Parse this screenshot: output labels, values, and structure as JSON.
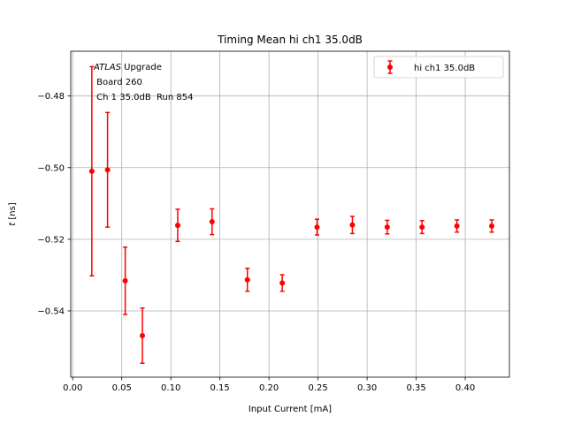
{
  "chart_data": {
    "type": "scatter",
    "title": "Timing Mean hi ch1 35.0dB",
    "xlabel": "Input Current [mA]",
    "ylabel_symbol": "t",
    "ylabel_unit": " [ns]",
    "xlim": [
      -0.002,
      0.445
    ],
    "ylim": [
      -0.5585,
      -0.4675
    ],
    "xticks": [
      0.0,
      0.05,
      0.1,
      0.15,
      0.2,
      0.25,
      0.3,
      0.35,
      0.4
    ],
    "xtick_labels": [
      "0.00",
      "0.05",
      "0.10",
      "0.15",
      "0.20",
      "0.25",
      "0.30",
      "0.35",
      "0.40"
    ],
    "yticks": [
      -0.54,
      -0.52,
      -0.5,
      -0.48
    ],
    "ytick_labels": [
      "−0.54",
      "−0.52",
      "−0.50",
      "−0.48"
    ],
    "grid": true,
    "legend_position": "top-right",
    "color": "#ff0000",
    "annotation": {
      "line1_italic": "ATLAS",
      "line1_rest": " Upgrade",
      "line2": " Board 260",
      "line3": " Ch 1 35.0dB  Run 854"
    },
    "series": [
      {
        "name": "hi ch1 35.0dB",
        "x": [
          0.0195,
          0.0355,
          0.0535,
          0.071,
          0.107,
          0.142,
          0.178,
          0.2135,
          0.249,
          0.285,
          0.3205,
          0.356,
          0.3915,
          0.427
        ],
        "y": [
          -0.501,
          -0.5006,
          -0.5316,
          -0.5469,
          -0.5161,
          -0.5151,
          -0.5313,
          -0.5322,
          -0.5166,
          -0.516,
          -0.5166,
          -0.5166,
          -0.5163,
          -0.5163
        ],
        "err": [
          0.0292,
          0.016,
          0.0094,
          0.0077,
          0.0045,
          0.0036,
          0.0032,
          0.0023,
          0.0022,
          0.0024,
          0.0019,
          0.0018,
          0.0017,
          0.0017
        ]
      }
    ]
  }
}
